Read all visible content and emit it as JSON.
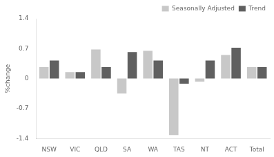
{
  "chart_data": {
    "type": "bar",
    "ylabel": "%change",
    "categories": [
      "NSW",
      "VIC",
      "QLD",
      "SA",
      "WA",
      "TAS",
      "NT",
      "ACT",
      "Total"
    ],
    "series": [
      {
        "name": "Seasonally Adjusted",
        "color": "#c8c8c8",
        "values": [
          0.27,
          0.15,
          0.68,
          -0.35,
          0.65,
          -1.32,
          -0.07,
          0.55,
          0.27
        ]
      },
      {
        "name": "Trend",
        "color": "#606060",
        "values": [
          0.42,
          0.15,
          0.27,
          0.62,
          0.42,
          -0.12,
          0.42,
          0.72,
          0.27
        ]
      }
    ],
    "ylim": [
      -1.4,
      1.4
    ],
    "yticks": [
      -1.4,
      -0.7,
      0,
      0.7,
      1.4
    ],
    "grid": false,
    "legend": "upper right"
  }
}
